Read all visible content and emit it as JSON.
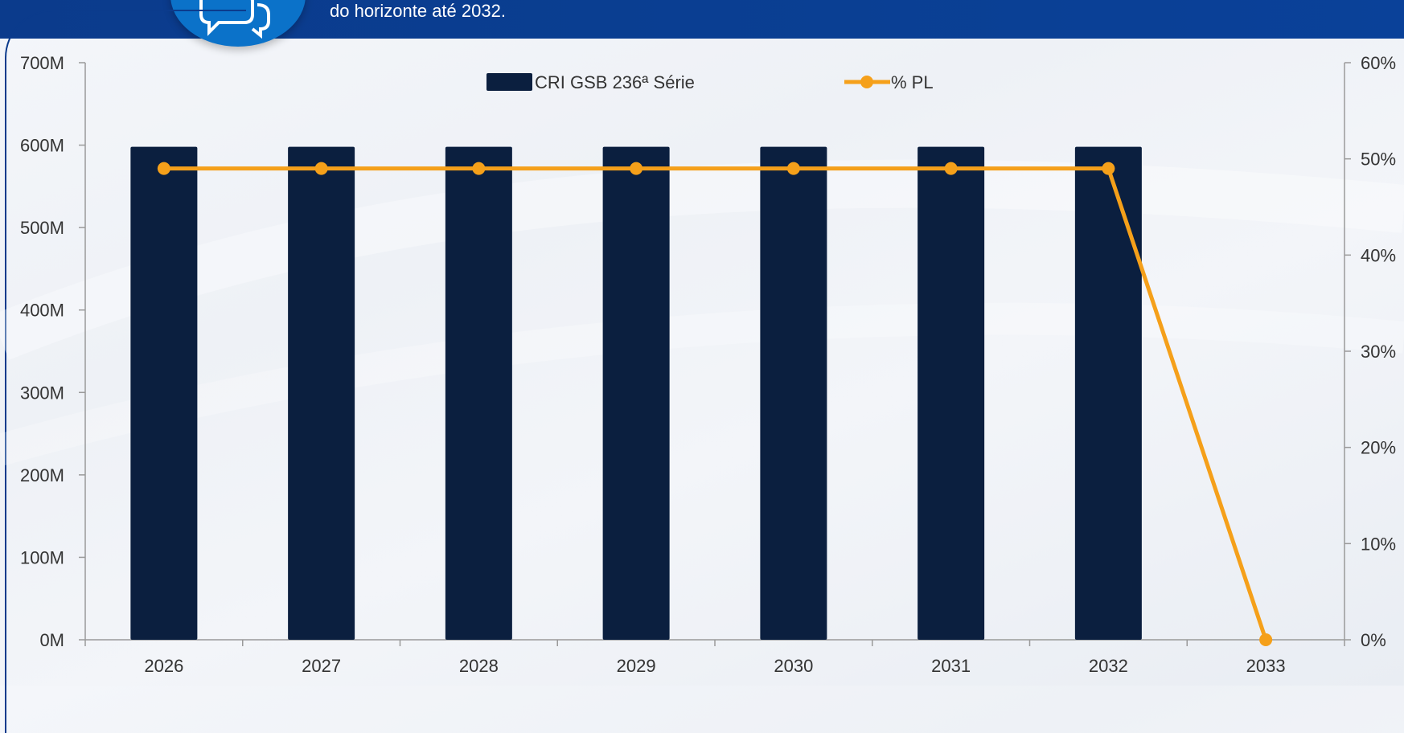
{
  "header": {
    "text": "do horizonte até 2032."
  },
  "icons": {
    "badge": "chat-bubbles-icon"
  },
  "colors": {
    "bar": "#0b1f3f",
    "line": "#f5a01a",
    "header": "#0b3b8c",
    "badge": "#0b72c9"
  },
  "chart_data": {
    "type": "bar",
    "categories": [
      "2026",
      "2027",
      "2028",
      "2029",
      "2030",
      "2031",
      "2032",
      "2033"
    ],
    "series": [
      {
        "name": "CRI GSB 236ª Série",
        "type": "bar",
        "axis": "left",
        "values": [
          598,
          598,
          598,
          598,
          598,
          598,
          598,
          0
        ]
      },
      {
        "name": "% PL",
        "type": "line",
        "axis": "right",
        "values": [
          49,
          49,
          49,
          49,
          49,
          49,
          49,
          0
        ]
      }
    ],
    "y_left": {
      "ylim": [
        0,
        700
      ],
      "ticks": [
        "0M",
        "100M",
        "200M",
        "300M",
        "400M",
        "500M",
        "600M",
        "700M"
      ]
    },
    "y_right": {
      "ylim": [
        0,
        60
      ],
      "ticks": [
        "0%",
        "10%",
        "20%",
        "30%",
        "40%",
        "50%",
        "60%"
      ]
    },
    "legend": {
      "placement": "top-center"
    },
    "grid": false
  }
}
